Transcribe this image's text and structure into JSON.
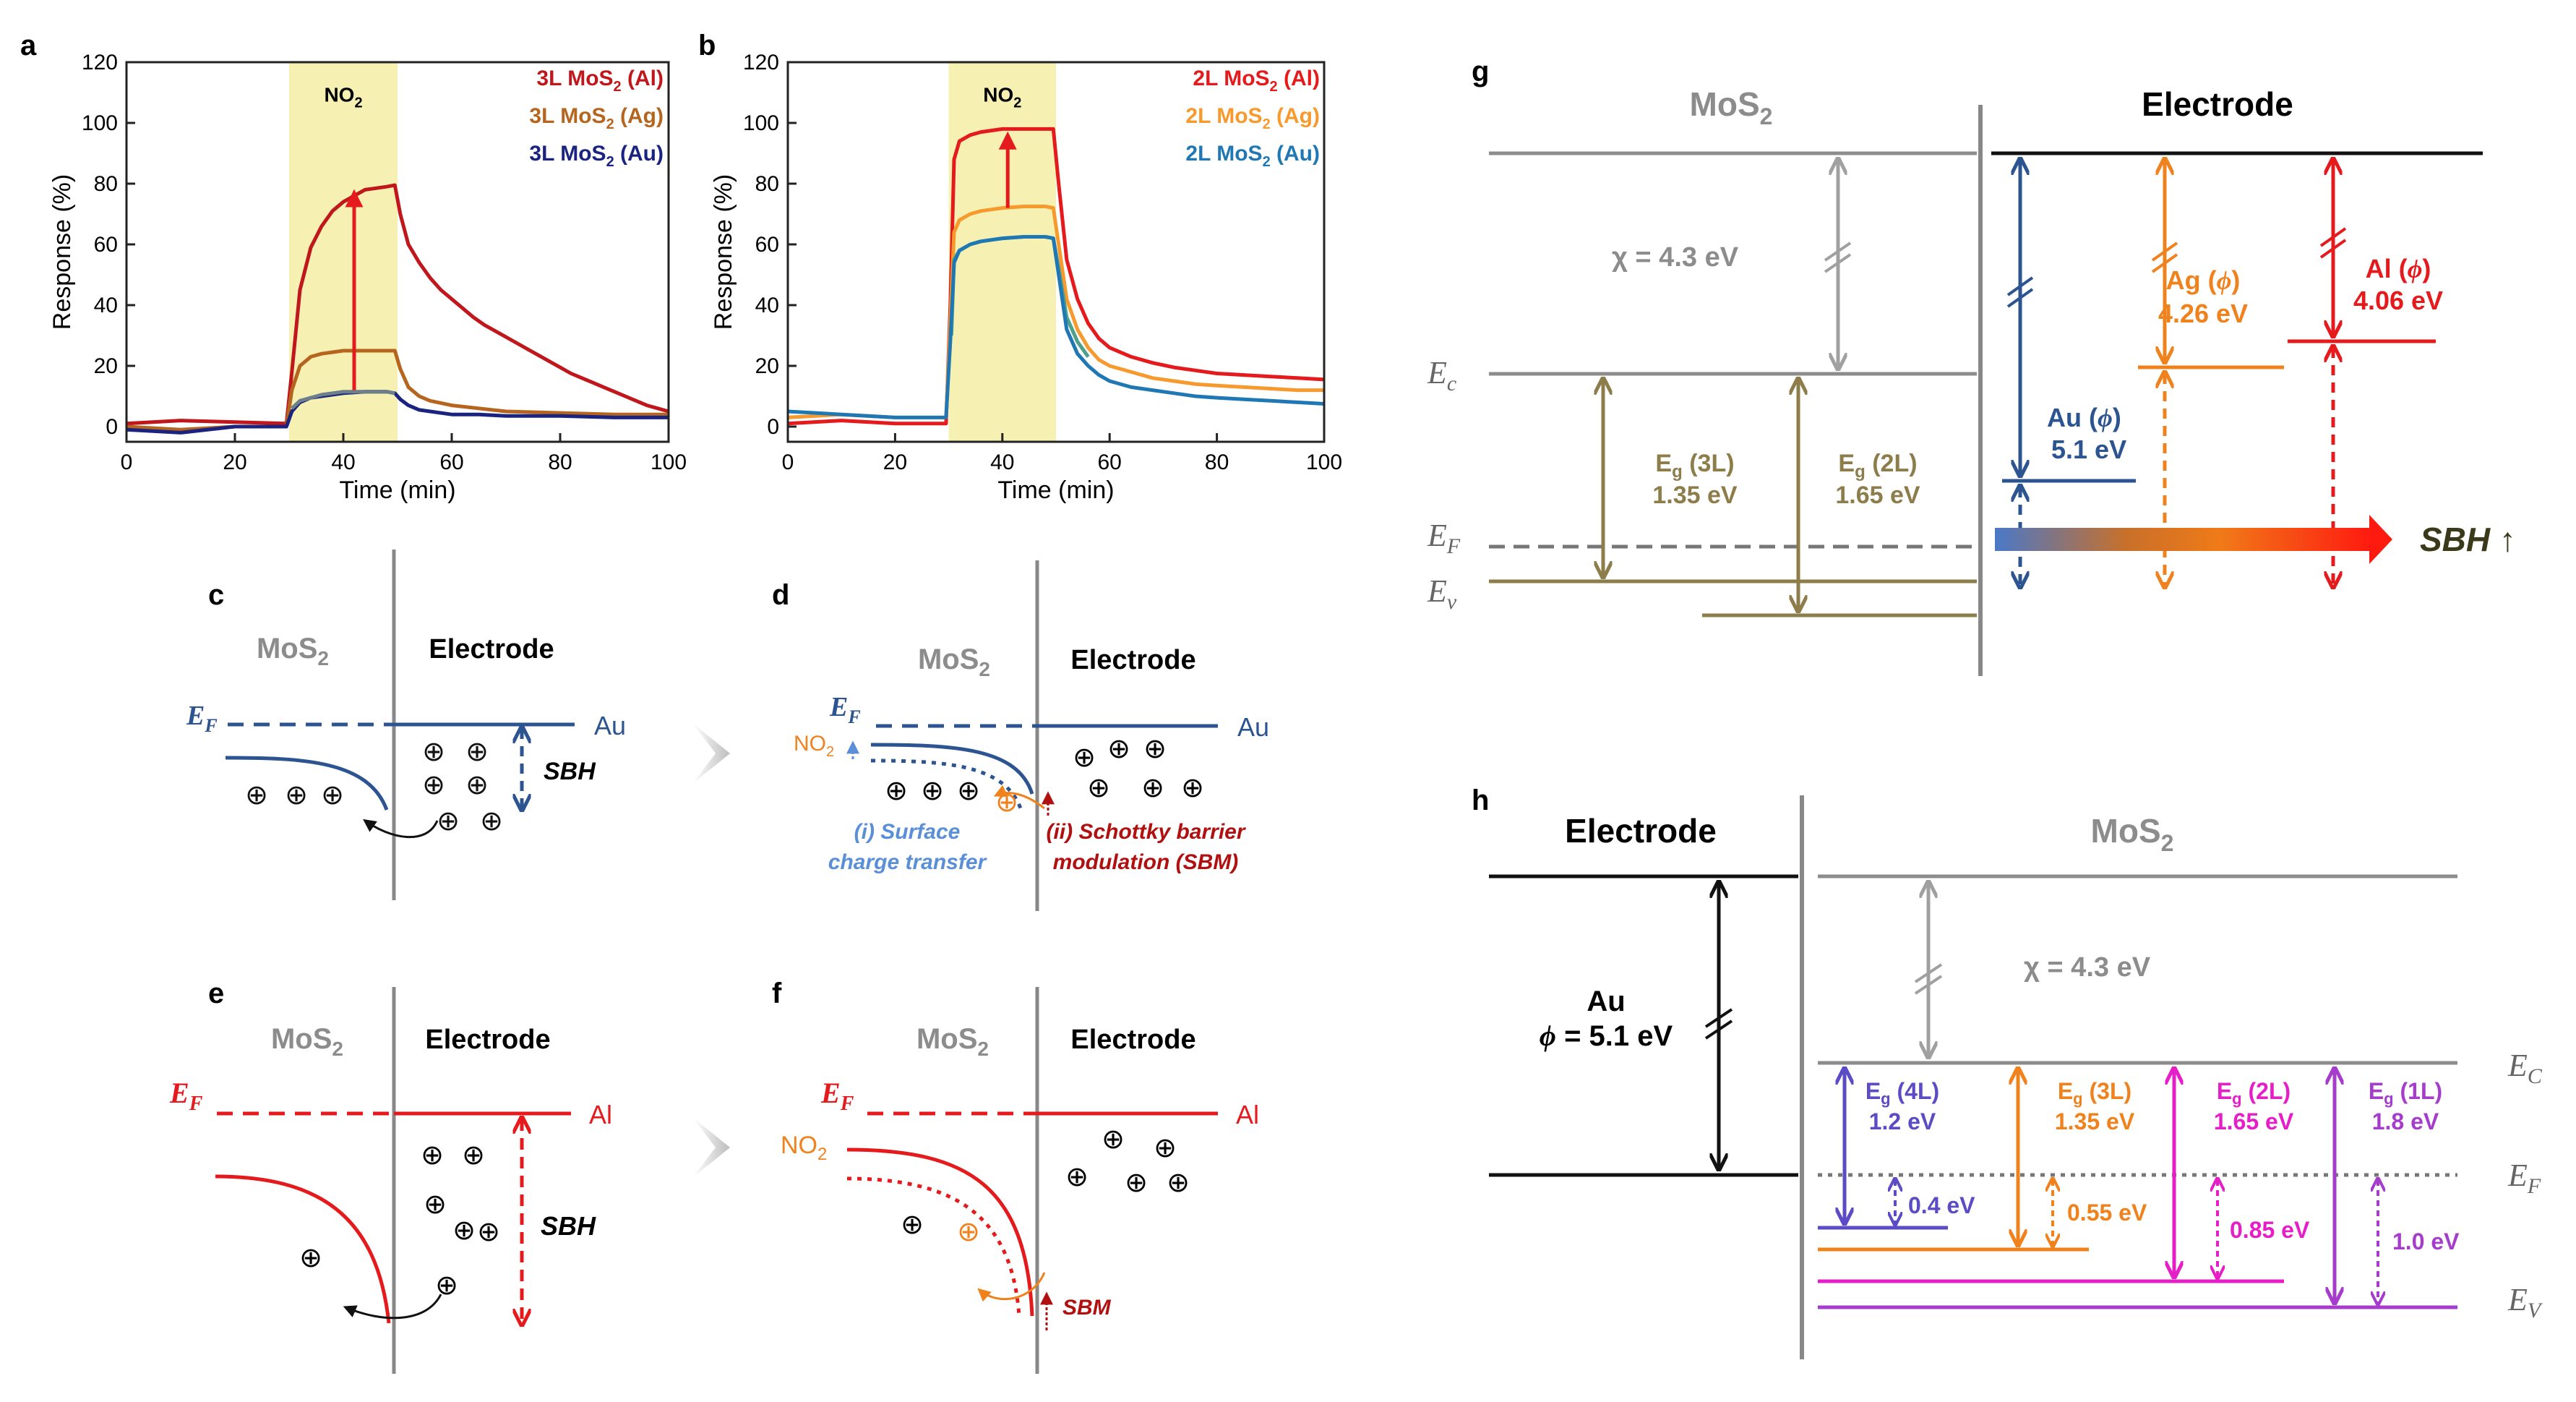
{
  "colors": {
    "al": "#e41a1c",
    "ag": "#f0821e",
    "au": "#2c5490",
    "au2": "#1f77b4",
    "olive": "#8c7d4a",
    "gray": "#8c8c8c",
    "violet": "#5b4bc4",
    "pink": "#e61ec8",
    "purple": "#a63ccc",
    "shade": "#f6f1b2"
  },
  "panel_letters": {
    "a": "a",
    "b": "b",
    "c": "c",
    "d": "d",
    "e": "e",
    "f": "f",
    "g": "g",
    "h": "h"
  },
  "chart_data": [
    {
      "type": "line",
      "panel": "a",
      "xlabel": "Time (min)",
      "ylabel": "Response (%)",
      "xlim": [
        0,
        100
      ],
      "ylim": [
        -5,
        120
      ],
      "xticks": [
        0,
        20,
        40,
        60,
        80,
        100
      ],
      "yticks": [
        0,
        20,
        40,
        60,
        80,
        100,
        120
      ],
      "shaded_region": {
        "x0": 30,
        "x1": 50,
        "label_main": "NO",
        "label_sub": "2"
      },
      "arrow": {
        "from": [
          42,
          12
        ],
        "to": [
          42,
          77
        ]
      },
      "series": [
        {
          "name_main": "3L MoS",
          "name_sub": "2",
          "name_tail": " (Al)",
          "color": "#c0171c",
          "x": [
            0,
            10,
            20,
            29.5,
            30.5,
            32,
            34,
            36,
            38,
            40,
            42,
            44,
            46,
            48,
            49.5,
            50.5,
            52,
            54,
            56,
            58,
            60,
            62,
            64,
            66,
            68,
            70,
            72,
            74,
            76,
            78,
            80,
            82,
            84,
            86,
            88,
            90,
            92,
            94,
            96,
            98,
            100
          ],
          "y": [
            1,
            2,
            1.5,
            1,
            18,
            45,
            59,
            66,
            71,
            74,
            76,
            78,
            78.5,
            79,
            79.5,
            70,
            60,
            54,
            49,
            45,
            42,
            39,
            36,
            33.5,
            31.5,
            29.5,
            27.5,
            25.5,
            23.5,
            21.5,
            19.5,
            17.5,
            16,
            14.5,
            13,
            11.5,
            10,
            8.5,
            7,
            6,
            5
          ]
        },
        {
          "name_main": "3L MoS",
          "name_sub": "2",
          "name_tail": " (Ag)",
          "color": "#b5651d",
          "x": [
            0,
            10,
            20,
            29.5,
            30.5,
            32,
            34,
            36,
            38,
            40,
            44,
            48,
            49.5,
            50.5,
            52,
            54,
            56,
            60,
            65,
            70,
            80,
            90,
            100
          ],
          "y": [
            0,
            -1,
            0,
            0,
            12,
            20,
            23,
            24,
            24.5,
            25,
            25,
            25,
            25,
            19,
            13,
            10,
            8.5,
            7,
            6,
            5,
            4.5,
            4,
            4
          ]
        },
        {
          "name_main": "3L MoS",
          "name_sub": "2",
          "name_tail": " (Au)",
          "color": "#1a2380",
          "x": [
            0,
            10,
            20,
            29.5,
            30.5,
            32,
            34,
            36,
            38,
            40,
            44,
            48,
            49.5,
            50.5,
            52,
            54,
            56,
            60,
            65,
            70,
            80,
            90,
            100
          ],
          "y": [
            -1,
            -2,
            0,
            0,
            5,
            8,
            9.5,
            10,
            10.5,
            11,
            11.5,
            11.5,
            11,
            9,
            7,
            5.5,
            5,
            4,
            4,
            3.5,
            3.5,
            3,
            3
          ]
        },
        {
          "name": "gray-overlay",
          "color": "#6e7f8c",
          "x": [
            30.5,
            32,
            34,
            36,
            38,
            40,
            44,
            48,
            49.5
          ],
          "y": [
            6,
            8.5,
            9.5,
            10.5,
            11,
            11.5,
            11.5,
            11.5,
            11
          ]
        }
      ]
    },
    {
      "type": "line",
      "panel": "b",
      "xlabel": "Time (min)",
      "ylabel": "Response (%)",
      "xlim": [
        0,
        100
      ],
      "ylim": [
        -5,
        120
      ],
      "xticks": [
        0,
        20,
        40,
        60,
        80,
        100
      ],
      "yticks": [
        0,
        20,
        40,
        60,
        80,
        100,
        120
      ],
      "shaded_region": {
        "x0": 30,
        "x1": 50,
        "label_main": "NO",
        "label_sub": "2"
      },
      "arrow": {
        "from": [
          41,
          72
        ],
        "to": [
          41,
          96
        ]
      },
      "series": [
        {
          "name_main": "2L MoS",
          "name_sub": "2",
          "name_tail": " (Al)",
          "color": "#e41a1c",
          "x": [
            0,
            10,
            20,
            29.5,
            30.3,
            31,
            32,
            34,
            36,
            38,
            40,
            44,
            48,
            49.5,
            50.5,
            52,
            54,
            56,
            58,
            60,
            64,
            68,
            72,
            76,
            80,
            85,
            90,
            95,
            100
          ],
          "y": [
            1,
            2,
            1,
            1,
            40,
            88,
            94,
            96,
            97,
            97.5,
            98,
            98,
            98,
            98,
            80,
            55,
            42,
            34,
            29,
            26,
            23,
            21,
            19.5,
            18.5,
            17.5,
            17,
            16.5,
            16,
            15.5
          ]
        },
        {
          "name_main": "2L MoS",
          "name_sub": "2",
          "name_tail": " (Ag)",
          "color": "#f79a2e",
          "x": [
            0,
            10,
            20,
            29.5,
            30.3,
            31,
            32,
            34,
            36,
            38,
            40,
            44,
            48,
            49.5,
            50.5,
            52,
            54,
            56,
            58,
            60,
            64,
            68,
            72,
            76,
            80,
            85,
            90,
            95,
            100
          ],
          "y": [
            3,
            4,
            3,
            3,
            35,
            64,
            68,
            70,
            71,
            71.5,
            72,
            72.5,
            72.5,
            72,
            60,
            42,
            32,
            26,
            22,
            20,
            18,
            16,
            15,
            14,
            13.5,
            13,
            12.5,
            12,
            12
          ]
        },
        {
          "name": "green-overlay",
          "color": "#4ea08a",
          "x": [
            30.5,
            31,
            32,
            34,
            36,
            38,
            40,
            44,
            48,
            49.5,
            50.5,
            52,
            54,
            56
          ],
          "y": [
            30,
            55,
            58,
            60,
            61,
            61.5,
            62,
            62.5,
            62.5,
            62,
            52,
            36,
            28,
            23
          ]
        },
        {
          "name_main": "2L MoS",
          "name_sub": "2",
          "name_tail": " (Au)",
          "color": "#1f78b4",
          "x": [
            0,
            10,
            20,
            29.5,
            30.3,
            31,
            32,
            34,
            36,
            38,
            40,
            44,
            48,
            49.5,
            50.5,
            52,
            54,
            56,
            58,
            60,
            64,
            68,
            72,
            76,
            80,
            85,
            90,
            95,
            100
          ],
          "y": [
            5,
            4,
            3,
            3,
            28,
            54,
            58,
            60,
            61,
            61.5,
            62,
            62.5,
            62.5,
            62,
            50,
            32,
            24,
            20,
            17,
            15,
            13,
            12,
            11,
            10,
            9.5,
            9,
            8.5,
            8,
            7.5
          ]
        }
      ]
    }
  ],
  "diagram_c": {
    "mos2_main": "MoS",
    "mos2_sub": "2",
    "electrode": "Electrode",
    "ef_main": "E",
    "ef_sub": "F",
    "metal": "Au",
    "sbh": "SBH",
    "hole": "⊕"
  },
  "diagram_d": {
    "mos2_main": "MoS",
    "mos2_sub": "2",
    "electrode": "Electrode",
    "ef_main": "E",
    "ef_sub": "F",
    "metal": "Au",
    "no2_main": "NO",
    "no2_sub": "2",
    "caption_i_line1": "(i) Surface",
    "caption_i_line2": "charge transfer",
    "caption_ii_line1": "(ii) Schottky barrier",
    "caption_ii_line2": "modulation (SBM)",
    "hole": "⊕"
  },
  "diagram_e": {
    "mos2_main": "MoS",
    "mos2_sub": "2",
    "electrode": "Electrode",
    "ef_main": "E",
    "ef_sub": "F",
    "metal": "Al",
    "sbh": "SBH",
    "hole": "⊕"
  },
  "diagram_f": {
    "mos2_main": "MoS",
    "mos2_sub": "2",
    "electrode": "Electrode",
    "ef_main": "E",
    "ef_sub": "F",
    "metal": "Al",
    "no2_main": "NO",
    "no2_sub": "2",
    "sbm": "SBM",
    "hole": "⊕"
  },
  "diagram_g": {
    "mos2_main": "MoS",
    "mos2_sub": "2",
    "electrode": "Electrode",
    "chi": "χ = 4.3 eV",
    "ec_main": "E",
    "ec_sub": "c",
    "ef_main": "E",
    "ef_sub": "F",
    "ev_main": "E",
    "ev_sub": "v",
    "eg3_main": "E",
    "eg3_sub": "g",
    "eg3_tail": " (3L)",
    "eg3_val": "1.35 eV",
    "eg2_main": "E",
    "eg2_sub": "g",
    "eg2_tail": " (2L)",
    "eg2_val": "1.65 eV",
    "au_label": "Au (",
    "au_phi": "ϕ",
    "au_close": ")",
    "au_val": "5.1 eV",
    "ag_label": "Ag (",
    "ag_phi": "ϕ",
    "ag_close": ")",
    "ag_val": "4.26 eV",
    "al_label": "Al (",
    "al_phi": "ϕ",
    "al_close": ")",
    "al_val": "4.06 eV",
    "sbh": "SBH ↑"
  },
  "diagram_h": {
    "electrode": "Electrode",
    "mos2_main": "MoS",
    "mos2_sub": "2",
    "au": "Au",
    "phi_label": "ϕ",
    "phi_val": " = 5.1 eV",
    "chi": "χ = 4.3 eV",
    "ec_main": "E",
    "ec_sub": "C",
    "ef_main": "E",
    "ef_sub": "F",
    "ev_main": "E",
    "ev_sub": "V",
    "eg4_main": "E",
    "eg4_sub": "g",
    "eg4_tail": " (4L)",
    "eg4_val": "1.2 eV",
    "off4": "0.4 eV",
    "eg3_main": "E",
    "eg3_sub": "g",
    "eg3_tail": " (3L)",
    "eg3_val": "1.35 eV",
    "off3": "0.55 eV",
    "eg2_main": "E",
    "eg2_sub": "g",
    "eg2_tail": " (2L)",
    "eg2_val": "1.65 eV",
    "off2": "0.85 eV",
    "eg1_main": "E",
    "eg1_sub": "g",
    "eg1_tail": " (1L)",
    "eg1_val": "1.8 eV",
    "off1": "1.0 eV"
  }
}
